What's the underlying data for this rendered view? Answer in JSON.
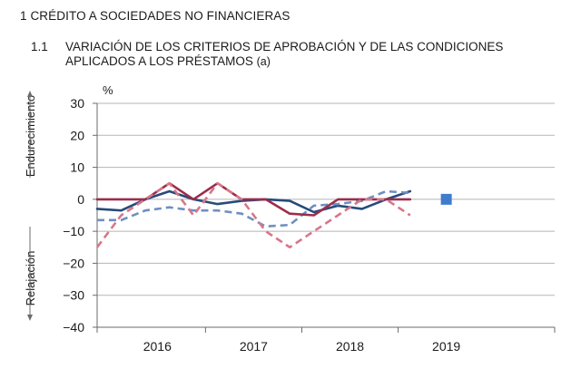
{
  "header": {
    "section": "1  CRÉDITO A SOCIEDADES NO FINANCIERAS",
    "subsection_number": "1.1",
    "subsection_line1": "VARIACIÓN DE LOS CRITERIOS DE APROBACIÓN Y DE LAS CONDICIONES",
    "subsection_line2": "APLICADOS A LOS PRÉSTAMOS",
    "subsection_note": "(a)"
  },
  "chart_data": {
    "type": "line",
    "title": "VARIACIÓN DE LOS CRITERIOS DE APROBACIÓN Y DE LAS CONDICIONES APLICADOS A LOS PRÉSTAMOS (a)",
    "ylabel": "%",
    "y_annotations": {
      "upper": "Endurecimiento",
      "lower": "Relajación"
    },
    "ylim": [
      -40,
      30
    ],
    "yticks": [
      30,
      20,
      10,
      0,
      -10,
      -20,
      -30,
      -40
    ],
    "xlim": [
      0,
      19
    ],
    "x_labels": [
      {
        "label": "2016",
        "pos": 2.5
      },
      {
        "label": "2017",
        "pos": 6.5
      },
      {
        "label": "2018",
        "pos": 10.5
      },
      {
        "label": "2019",
        "pos": 14.5
      }
    ],
    "x_year_boundaries": [
      4.5,
      8.5,
      12.5
    ],
    "grid": "horizontal",
    "legend": "none",
    "series": [
      {
        "style": "solid",
        "color": "#274b7a",
        "x": [
          0,
          1,
          2,
          3,
          4,
          5,
          6,
          7,
          8,
          9,
          10,
          11,
          12,
          13
        ],
        "values": [
          -3,
          -3.5,
          0,
          2.5,
          0,
          -1.5,
          -0.5,
          0,
          -0.5,
          -4,
          -2,
          -3,
          0,
          2.5
        ]
      },
      {
        "style": "dashed",
        "color": "#6f8fc0",
        "x": [
          0,
          1,
          2,
          3,
          4,
          5,
          6,
          7,
          8,
          9,
          10,
          11,
          12,
          13
        ],
        "values": [
          -6.5,
          -6.5,
          -3.5,
          -2.5,
          -3.5,
          -3.5,
          -4.5,
          -8.5,
          -8,
          -2,
          -1.5,
          -0.5,
          2.5,
          2
        ]
      },
      {
        "style": "solid",
        "color": "#9b2d4b",
        "x": [
          0,
          1,
          2,
          3,
          4,
          5,
          6,
          7,
          8,
          9,
          10,
          11,
          12,
          13
        ],
        "values": [
          0,
          0,
          0,
          5,
          0,
          5,
          0,
          0,
          -4.5,
          -5,
          0,
          0,
          0,
          0
        ]
      },
      {
        "style": "dashed",
        "color": "#d9768a",
        "x": [
          0,
          1,
          2,
          3,
          4,
          5,
          6,
          7,
          8,
          9,
          10,
          11,
          12,
          13
        ],
        "values": [
          -15,
          -5,
          0,
          5,
          -5,
          5,
          0,
          -10,
          -15,
          -10,
          -5,
          0,
          0,
          -5
        ]
      },
      {
        "style": "marker",
        "color": "#3f7ccc",
        "x": [
          14.5
        ],
        "values": [
          0
        ]
      }
    ]
  }
}
